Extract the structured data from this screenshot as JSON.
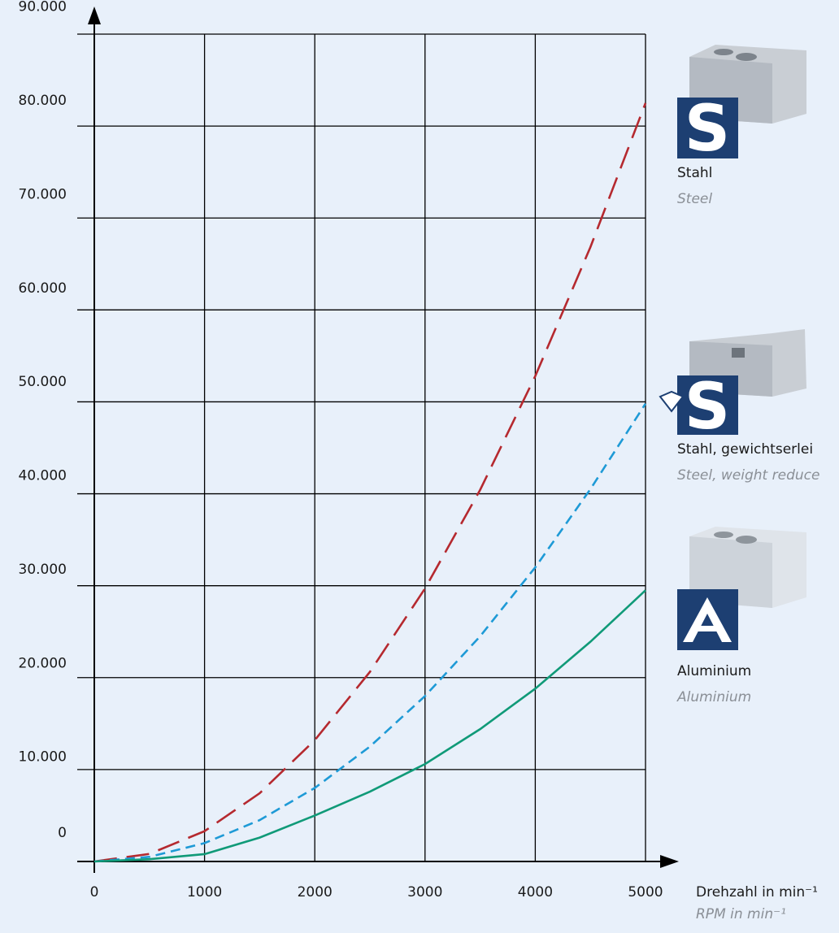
{
  "chart_data": {
    "type": "line",
    "x_label": "Drehzahl in min⁻¹",
    "x_label_en": "RPM in min⁻¹",
    "x": [
      0,
      500,
      1000,
      1500,
      2000,
      2500,
      3000,
      3500,
      4000,
      4500,
      5000
    ],
    "series": [
      {
        "name": "Stahl",
        "name_en": "Steel",
        "color": "#b5292f",
        "dash": "28 12",
        "values": [
          0,
          825,
          3300,
          7425,
          13200,
          20625,
          29700,
          40425,
          52800,
          66825,
          82500
        ]
      },
      {
        "name": "Stahl, gewichtserlei",
        "name_en": "Steel, weight reduce",
        "color": "#1e9ad6",
        "dash": "12 7",
        "values": [
          0,
          500,
          2000,
          4500,
          8000,
          12500,
          18000,
          24500,
          32000,
          40500,
          49800
        ]
      },
      {
        "name": "Aluminium",
        "name_en": "Aluminium",
        "color": "#109a78",
        "dash": "none",
        "values": [
          0,
          250,
          800,
          2600,
          5000,
          7600,
          10600,
          14400,
          18800,
          23900,
          29500
        ]
      }
    ],
    "xlim": [
      0,
      5000
    ],
    "xticks": [
      0,
      1000,
      2000,
      3000,
      4000,
      5000
    ],
    "ylim": [
      0,
      90000
    ],
    "yticks": [
      0,
      {
        "value": 10000,
        "label": "10.000"
      },
      {
        "value": 20000,
        "label": "20.000"
      },
      {
        "value": 30000,
        "label": "30.000"
      },
      {
        "value": 40000,
        "label": "40.000"
      },
      {
        "value": 50000,
        "label": "50.000"
      },
      {
        "value": 60000,
        "label": "60.000"
      },
      {
        "value": 70000,
        "label": "70.000"
      },
      {
        "value": 80000,
        "label": "80.000"
      },
      {
        "value": 90000,
        "label": "90.000"
      }
    ],
    "grid": true
  }
}
